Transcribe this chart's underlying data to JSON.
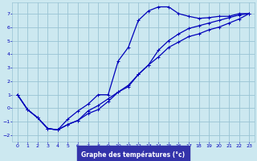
{
  "title": "Graphe des températures (°c)",
  "background_color": "#cce8f0",
  "plot_background": "#cce8f0",
  "grid_color": "#99c4d4",
  "line_color": "#0000bb",
  "label_bg": "#3333aa",
  "label_fg": "#ffffff",
  "xlim": [
    -0.5,
    23.5
  ],
  "ylim": [
    -2.5,
    7.8
  ],
  "xticks": [
    0,
    1,
    2,
    3,
    4,
    5,
    6,
    7,
    8,
    9,
    10,
    11,
    12,
    13,
    14,
    15,
    16,
    17,
    18,
    19,
    20,
    21,
    22,
    23
  ],
  "yticks": [
    -2,
    -1,
    0,
    1,
    2,
    3,
    4,
    5,
    6,
    7
  ],
  "line1_x": [
    0,
    1,
    2,
    3,
    4,
    5,
    6,
    7,
    8,
    9,
    10,
    11,
    12,
    13,
    14,
    15,
    16,
    17,
    18,
    19,
    20,
    21,
    22,
    23
  ],
  "line1_y": [
    1.0,
    -0.1,
    -0.7,
    -1.5,
    -1.6,
    -0.8,
    -0.2,
    0.3,
    1.0,
    1.0,
    3.5,
    4.5,
    6.5,
    7.2,
    7.5,
    7.5,
    7.0,
    6.8,
    6.65,
    6.7,
    6.8,
    6.8,
    7.0,
    7.0
  ],
  "line2_x": [
    0,
    1,
    2,
    3,
    4,
    5,
    6,
    7,
    8,
    9,
    10,
    11,
    12,
    13,
    14,
    15,
    16,
    17,
    18,
    19,
    20,
    21,
    22,
    23
  ],
  "line2_y": [
    1.0,
    -0.1,
    -0.7,
    -1.5,
    -1.6,
    -1.2,
    -0.9,
    -0.4,
    -0.1,
    0.5,
    1.2,
    1.7,
    2.5,
    3.2,
    4.3,
    5.0,
    5.5,
    5.9,
    6.1,
    6.3,
    6.5,
    6.7,
    6.9,
    7.0
  ],
  "line3_x": [
    0,
    1,
    2,
    3,
    4,
    5,
    6,
    7,
    8,
    9,
    10,
    11,
    12,
    13,
    14,
    15,
    16,
    17,
    18,
    19,
    20,
    21,
    22,
    23
  ],
  "line3_y": [
    1.0,
    -0.1,
    -0.7,
    -1.5,
    -1.6,
    -1.2,
    -0.9,
    -0.2,
    0.2,
    0.7,
    1.2,
    1.6,
    2.5,
    3.2,
    3.8,
    4.5,
    4.9,
    5.3,
    5.5,
    5.8,
    6.0,
    6.3,
    6.6,
    7.0
  ]
}
